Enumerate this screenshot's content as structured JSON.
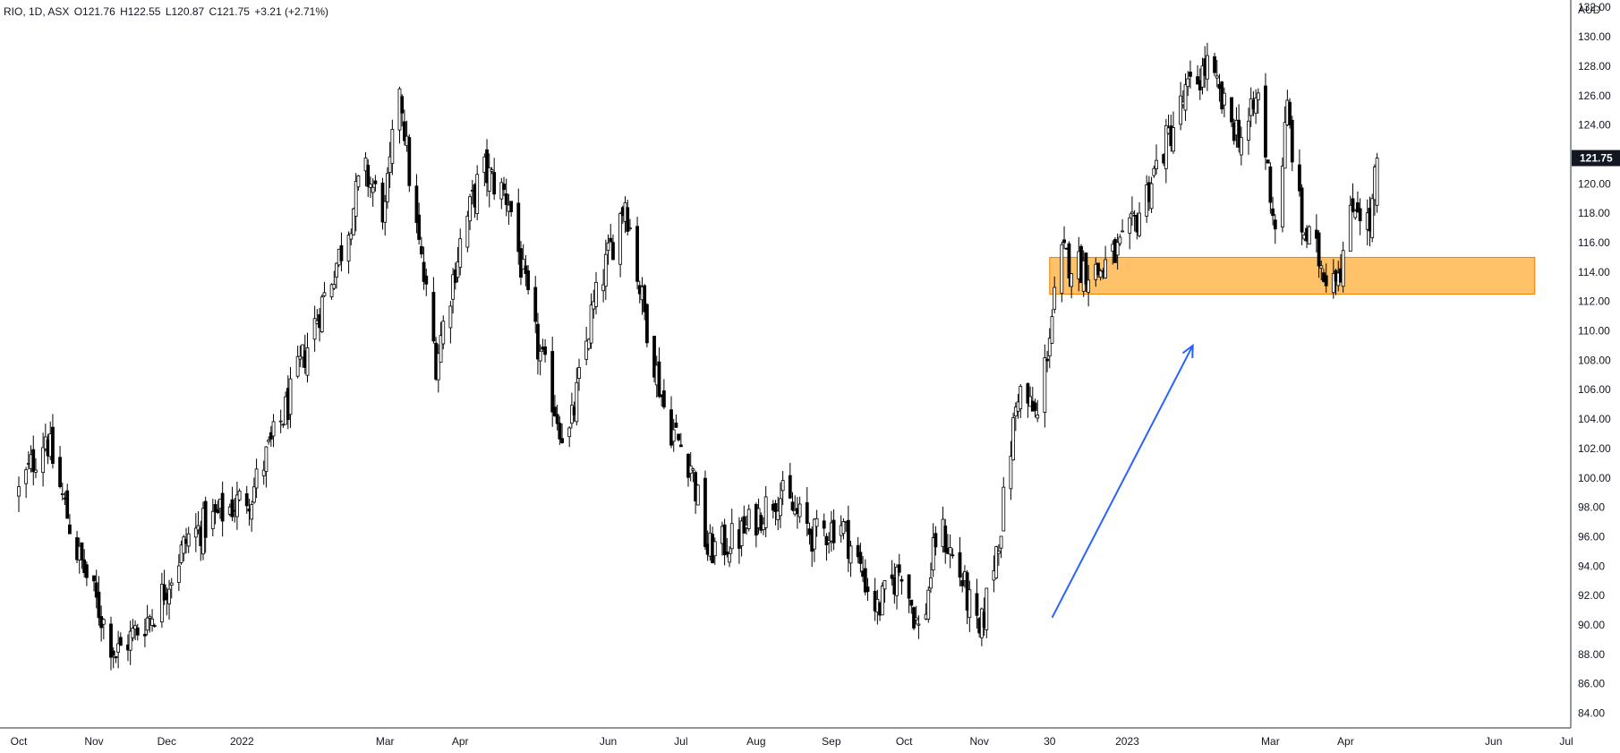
{
  "legend": {
    "symbol": "RIO, 1D, ASX",
    "open": "O121.76",
    "high": "H122.55",
    "low": "L120.87",
    "close": "C121.75",
    "change": "+3.21 (+2.71%)"
  },
  "chart_data": {
    "type": "candlestick",
    "price_axis": {
      "currency": "AUD",
      "ylim": [
        83,
        132.5
      ],
      "ticks": [
        "84.00",
        "86.00",
        "88.00",
        "90.00",
        "92.00",
        "94.00",
        "96.00",
        "98.00",
        "100.00",
        "102.00",
        "104.00",
        "106.00",
        "108.00",
        "110.00",
        "112.00",
        "114.00",
        "116.00",
        "118.00",
        "120.00",
        "122.00",
        "124.00",
        "126.00",
        "128.00",
        "130.00",
        "132.00"
      ],
      "last_price_label": "121.75"
    },
    "time_axis": {
      "labels": [
        "Oct",
        "Nov",
        "Dec",
        "2022",
        "Mar",
        "Apr",
        "Jun",
        "Jul",
        "Aug",
        "Sep",
        "Oct",
        "Nov",
        "30",
        "2023",
        "Mar",
        "Apr",
        "Jun",
        "Jul"
      ]
    },
    "close_path": [
      {
        "date": "2021-10-01",
        "close": 99.0
      },
      {
        "date": "2021-10-12",
        "close": 103.0
      },
      {
        "date": "2021-10-25",
        "close": 95.0
      },
      {
        "date": "2021-11-10",
        "close": 88.0
      },
      {
        "date": "2021-11-26",
        "close": 91.0
      },
      {
        "date": "2021-12-10",
        "close": 96.0
      },
      {
        "date": "2022-01-05",
        "close": 99.0
      },
      {
        "date": "2022-01-20",
        "close": 105.0
      },
      {
        "date": "2022-02-01",
        "close": 111.0
      },
      {
        "date": "2022-02-12",
        "close": 116.0
      },
      {
        "date": "2022-02-20",
        "close": 121.0
      },
      {
        "date": "2022-03-01",
        "close": 118.0
      },
      {
        "date": "2022-03-07",
        "close": 127.0
      },
      {
        "date": "2022-03-12",
        "close": 119.0
      },
      {
        "date": "2022-03-22",
        "close": 108.0
      },
      {
        "date": "2022-04-01",
        "close": 116.0
      },
      {
        "date": "2022-04-10",
        "close": 121.0
      },
      {
        "date": "2022-04-21",
        "close": 119.0
      },
      {
        "date": "2022-05-01",
        "close": 110.0
      },
      {
        "date": "2022-05-15",
        "close": 102.0
      },
      {
        "date": "2022-05-25",
        "close": 111.0
      },
      {
        "date": "2022-06-01",
        "close": 115.0
      },
      {
        "date": "2022-06-08",
        "close": 119.0
      },
      {
        "date": "2022-06-15",
        "close": 112.0
      },
      {
        "date": "2022-06-25",
        "close": 104.0
      },
      {
        "date": "2022-07-05",
        "close": 101.0
      },
      {
        "date": "2022-07-12",
        "close": 95.0
      },
      {
        "date": "2022-07-25",
        "close": 96.0
      },
      {
        "date": "2022-08-10",
        "close": 99.0
      },
      {
        "date": "2022-08-25",
        "close": 96.0
      },
      {
        "date": "2022-09-05",
        "close": 97.0
      },
      {
        "date": "2022-09-20",
        "close": 91.0
      },
      {
        "date": "2022-09-30",
        "close": 94.0
      },
      {
        "date": "2022-10-08",
        "close": 89.0
      },
      {
        "date": "2022-10-15",
        "close": 97.0
      },
      {
        "date": "2022-10-25",
        "close": 93.0
      },
      {
        "date": "2022-11-01",
        "close": 89.0
      },
      {
        "date": "2022-11-10",
        "close": 97.0
      },
      {
        "date": "2022-11-17",
        "close": 106.0
      },
      {
        "date": "2022-11-25",
        "close": 104.0
      },
      {
        "date": "2022-11-30",
        "close": 110.0
      },
      {
        "date": "2022-12-05",
        "close": 115.0
      },
      {
        "date": "2022-12-20",
        "close": 114.0
      },
      {
        "date": "2023-01-01",
        "close": 116.0
      },
      {
        "date": "2023-01-15",
        "close": 122.0
      },
      {
        "date": "2023-01-25",
        "close": 126.0
      },
      {
        "date": "2023-02-03",
        "close": 128.0
      },
      {
        "date": "2023-02-10",
        "close": 125.0
      },
      {
        "date": "2023-02-18",
        "close": 123.0
      },
      {
        "date": "2023-02-24",
        "close": 126.0
      },
      {
        "date": "2023-03-03",
        "close": 117.0
      },
      {
        "date": "2023-03-08",
        "close": 125.0
      },
      {
        "date": "2023-03-14",
        "close": 117.0
      },
      {
        "date": "2023-03-24",
        "close": 114.0
      },
      {
        "date": "2023-03-30",
        "close": 114.5
      },
      {
        "date": "2023-04-05",
        "close": 119.0
      },
      {
        "date": "2023-04-11",
        "close": 117.0
      },
      {
        "date": "2023-04-14",
        "close": 121.75
      }
    ],
    "support_zone": {
      "from_date": "2022-11-30",
      "to_date": "2023-06-18",
      "price_low": 112.5,
      "price_high": 115.0,
      "color": "#ffb74d"
    },
    "trend_arrow": {
      "from_date": "2022-12-01",
      "from_price": 90.5,
      "to_date": "2023-01-28",
      "to_price": 109.0,
      "color": "#2962ff"
    }
  }
}
